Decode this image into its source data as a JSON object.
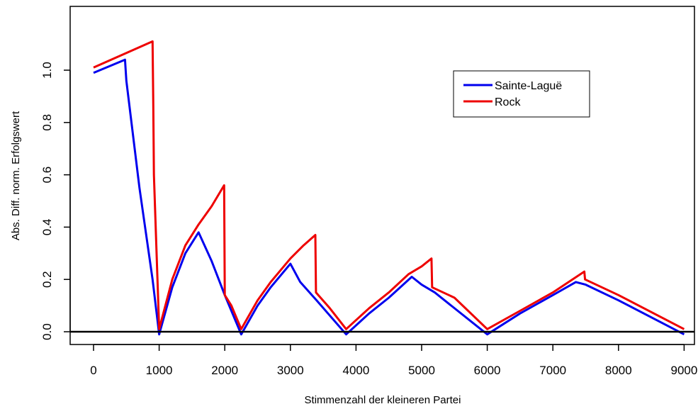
{
  "chart_data": {
    "type": "line",
    "title": "",
    "xlabel": "Stimmenzahl der kleineren Partei",
    "ylabel": "Abs. Diff. norm. Erfolgswert",
    "xlim": [
      -400,
      9300
    ],
    "ylim": [
      -0.05,
      1.25
    ],
    "xticks": [
      0,
      1000,
      2000,
      3000,
      4000,
      5000,
      6000,
      7000,
      8000,
      9000
    ],
    "xtick_labels": [
      "0",
      "1000",
      "2000",
      "3000",
      "4000",
      "5000",
      "6000",
      "7000",
      "8000",
      "9000"
    ],
    "yticks": [
      0.0,
      0.2,
      0.4,
      0.6,
      0.8,
      1.0
    ],
    "ytick_labels": [
      "0.0",
      "0.2",
      "0.4",
      "0.6",
      "0.8",
      "1.0"
    ],
    "hline": 0,
    "grid": false,
    "legend": {
      "position": "top-right"
    },
    "series": [
      {
        "name": "Sainte-Laguë",
        "color": "#0000ee",
        "points": [
          [
            0,
            0.99
          ],
          [
            480,
            1.04
          ],
          [
            500,
            0.96
          ],
          [
            700,
            0.55
          ],
          [
            900,
            0.2
          ],
          [
            1000,
            -0.01
          ],
          [
            1200,
            0.17
          ],
          [
            1400,
            0.3
          ],
          [
            1600,
            0.38
          ],
          [
            1800,
            0.27
          ],
          [
            2000,
            0.14
          ],
          [
            2250,
            -0.01
          ],
          [
            2500,
            0.1
          ],
          [
            2700,
            0.17
          ],
          [
            3000,
            0.26
          ],
          [
            3150,
            0.19
          ],
          [
            3400,
            0.12
          ],
          [
            3850,
            -0.01
          ],
          [
            4200,
            0.07
          ],
          [
            4500,
            0.13
          ],
          [
            4850,
            0.21
          ],
          [
            5000,
            0.18
          ],
          [
            5200,
            0.15
          ],
          [
            6000,
            -0.01
          ],
          [
            6500,
            0.07
          ],
          [
            7000,
            0.14
          ],
          [
            7350,
            0.19
          ],
          [
            7500,
            0.18
          ],
          [
            8000,
            0.12
          ],
          [
            9000,
            -0.01
          ]
        ]
      },
      {
        "name": "Rock",
        "color": "#ee0000",
        "points": [
          [
            0,
            1.01
          ],
          [
            900,
            1.11
          ],
          [
            910,
            0.87
          ],
          [
            920,
            0.6
          ],
          [
            1000,
            0.01
          ],
          [
            1200,
            0.2
          ],
          [
            1400,
            0.33
          ],
          [
            1600,
            0.41
          ],
          [
            1800,
            0.48
          ],
          [
            1990,
            0.56
          ],
          [
            2000,
            0.14
          ],
          [
            2100,
            0.1
          ],
          [
            2250,
            0.01
          ],
          [
            2500,
            0.12
          ],
          [
            2700,
            0.19
          ],
          [
            3000,
            0.28
          ],
          [
            3200,
            0.33
          ],
          [
            3380,
            0.37
          ],
          [
            3390,
            0.15
          ],
          [
            3600,
            0.09
          ],
          [
            3850,
            0.01
          ],
          [
            4200,
            0.09
          ],
          [
            4500,
            0.15
          ],
          [
            4800,
            0.22
          ],
          [
            5000,
            0.25
          ],
          [
            5150,
            0.28
          ],
          [
            5160,
            0.17
          ],
          [
            5500,
            0.13
          ],
          [
            6000,
            0.01
          ],
          [
            6500,
            0.08
          ],
          [
            7000,
            0.15
          ],
          [
            7480,
            0.23
          ],
          [
            7490,
            0.2
          ],
          [
            8000,
            0.14
          ],
          [
            9000,
            0.01
          ]
        ]
      }
    ]
  }
}
